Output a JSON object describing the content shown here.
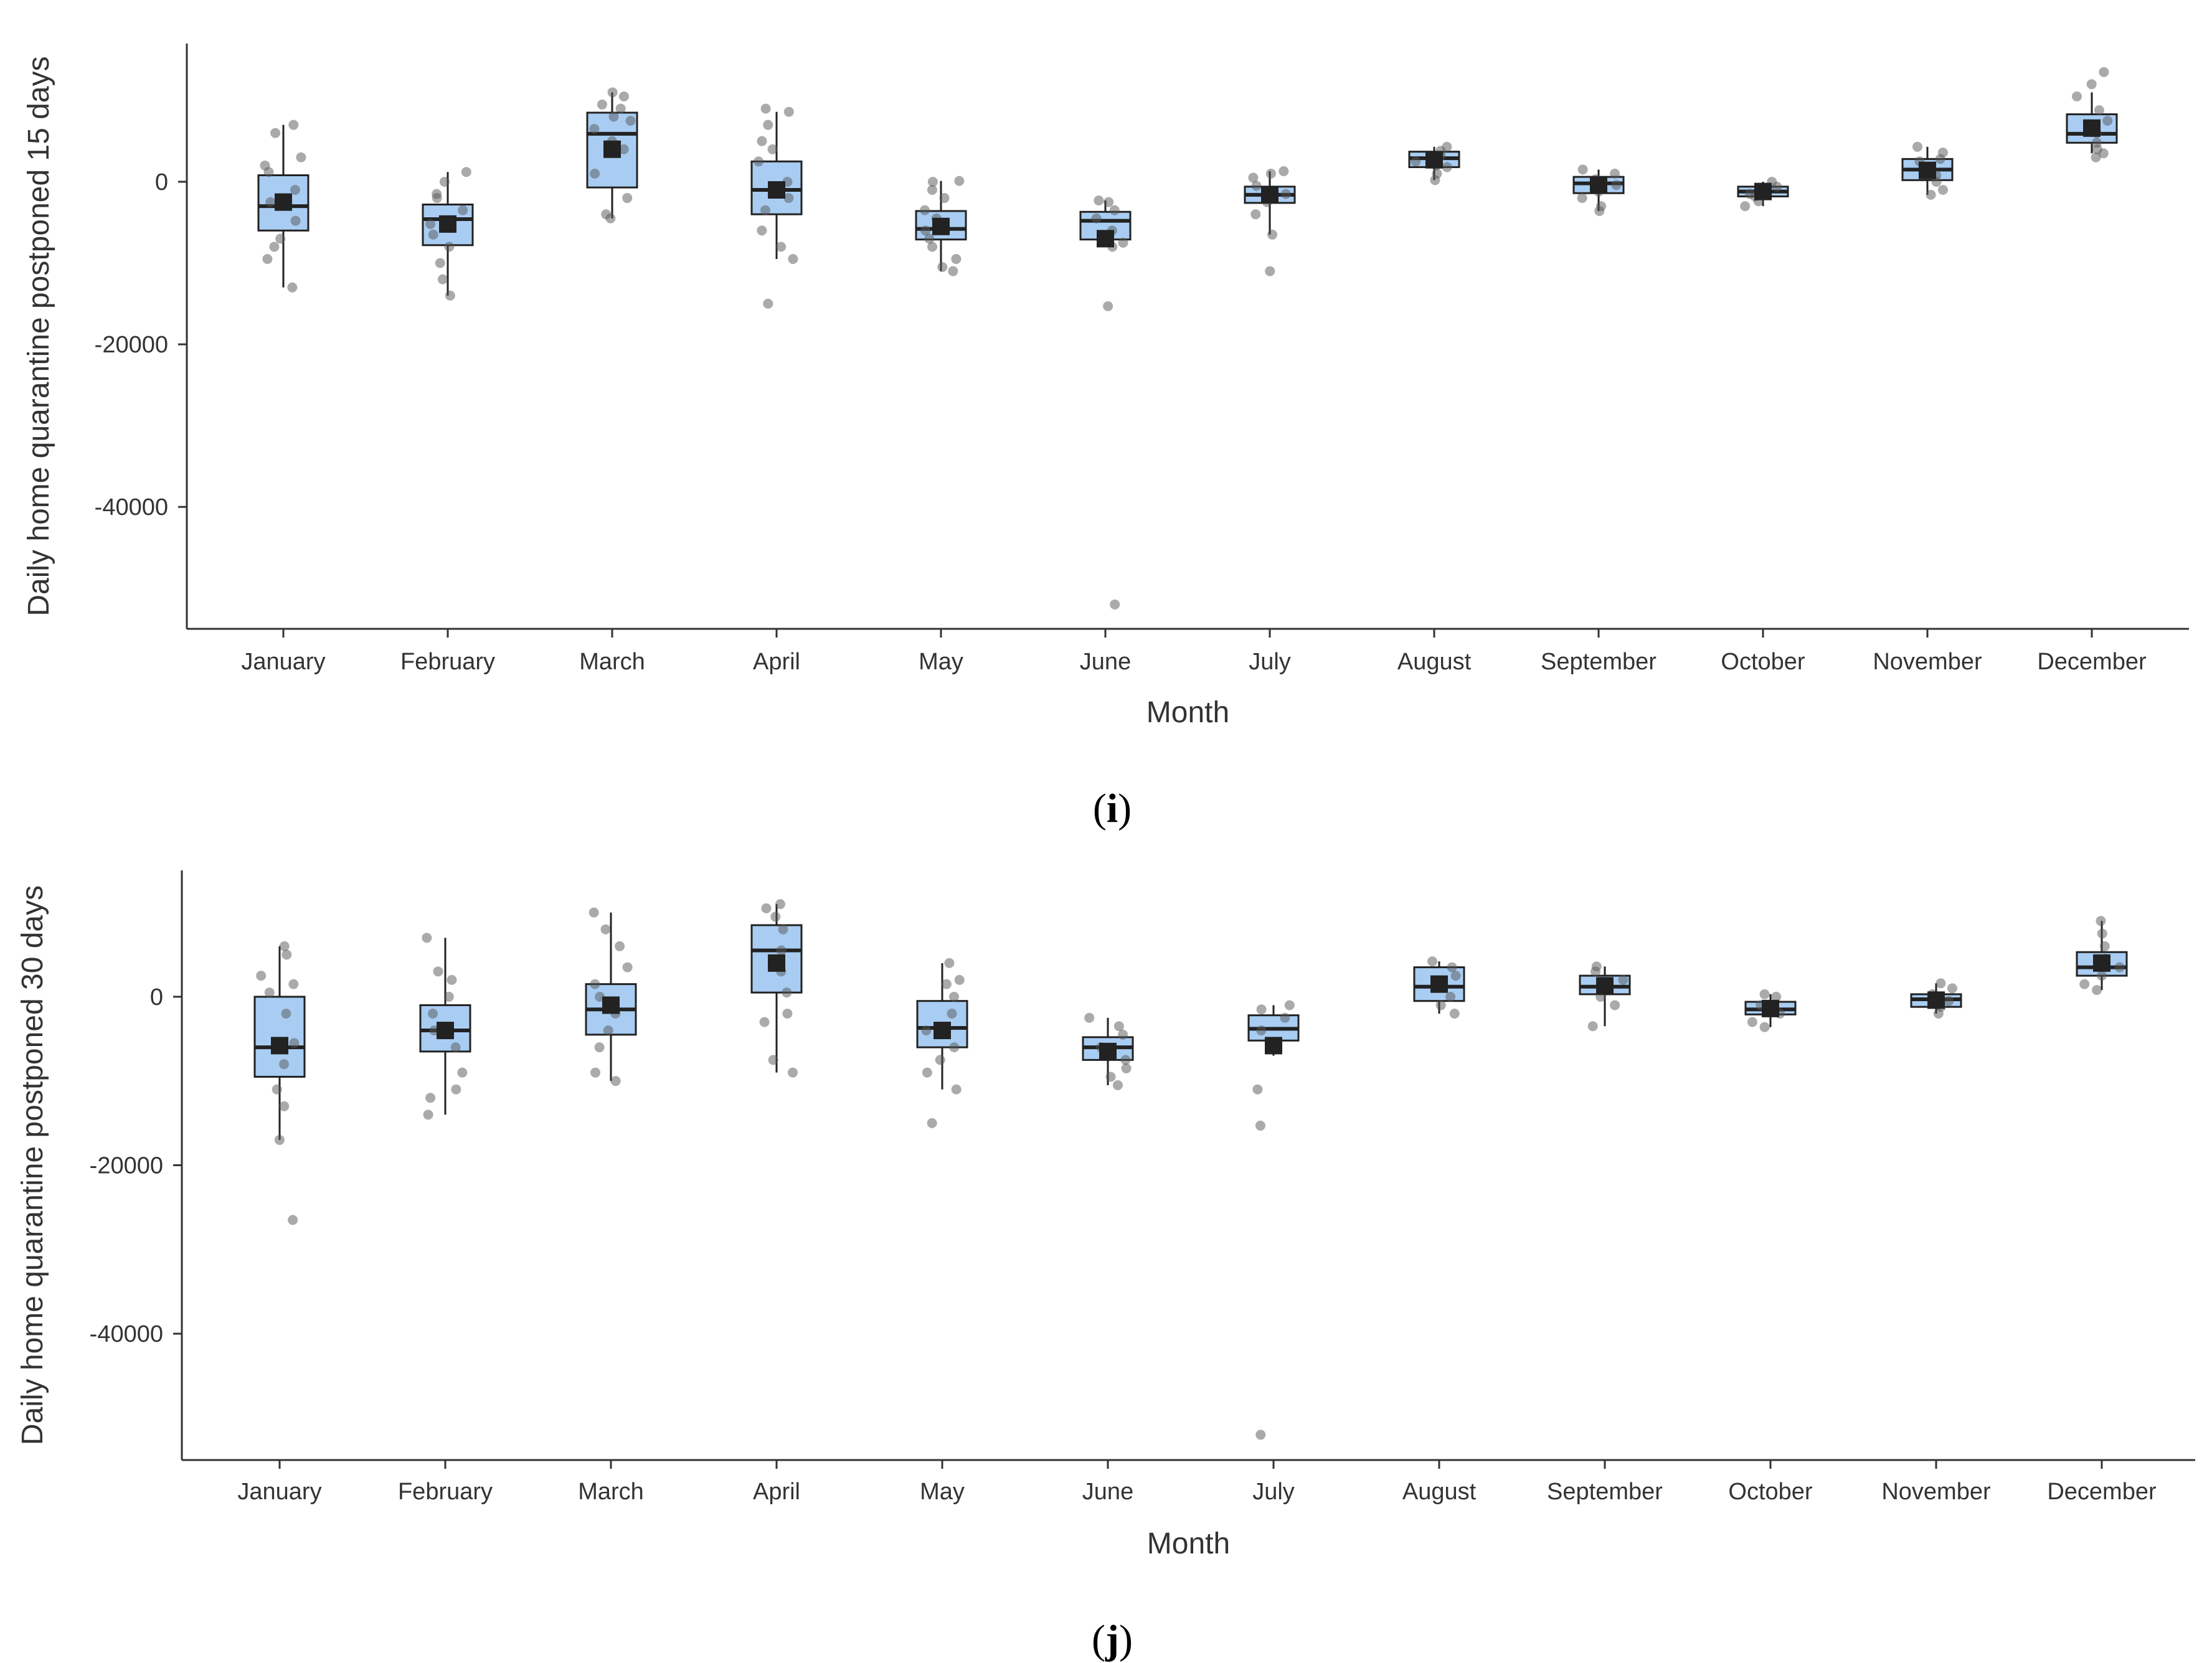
{
  "colors": {
    "box_fill": "#a9cdf2",
    "box_stroke": "#222222",
    "point": "#555555",
    "axis": "#333333"
  },
  "chart_data": [
    {
      "type": "box",
      "panel_label": "i",
      "xlabel": "Month",
      "ylabel": "Daily home quarantine postponed 15 days",
      "ylim": [
        -55000,
        17000
      ],
      "yticks": [
        0,
        -20000,
        -40000
      ],
      "ytick_labels": [
        "0",
        "-20000",
        "-40000"
      ],
      "categories": [
        "January",
        "February",
        "March",
        "April",
        "May",
        "June",
        "July",
        "August",
        "September",
        "October",
        "November",
        "December"
      ],
      "boxes": [
        {
          "min": -13000,
          "q1": -6000,
          "median": -3000,
          "q3": 800,
          "max": 7000,
          "mean": -2500
        },
        {
          "min": -14000,
          "q1": -7800,
          "median": -4600,
          "q3": -2800,
          "max": 1200,
          "mean": -5200
        },
        {
          "min": -4500,
          "q1": -700,
          "median": 5900,
          "q3": 8500,
          "max": 11000,
          "mean": 4000
        },
        {
          "min": -9500,
          "q1": -4000,
          "median": -1000,
          "q3": 2500,
          "max": 8600,
          "mean": -1000
        },
        {
          "min": -11000,
          "q1": -7100,
          "median": -5800,
          "q3": -3600,
          "max": 100,
          "mean": -5500
        },
        {
          "min": -8000,
          "q1": -7100,
          "median": -4800,
          "q3": -3700,
          "max": -2300,
          "mean": -7000
        },
        {
          "min": -6500,
          "q1": -2600,
          "median": -1600,
          "q3": -600,
          "max": 1300,
          "mean": -1600
        },
        {
          "min": 200,
          "q1": 1800,
          "median": 2900,
          "q3": 3700,
          "max": 4300,
          "mean": 2700
        },
        {
          "min": -3600,
          "q1": -1400,
          "median": -200,
          "q3": 600,
          "max": 1500,
          "mean": -400
        },
        {
          "min": -3000,
          "q1": -1800,
          "median": -1200,
          "q3": -600,
          "max": 0,
          "mean": -1200
        },
        {
          "min": -1600,
          "q1": 200,
          "median": 1500,
          "q3": 2800,
          "max": 4300,
          "mean": 1400
        },
        {
          "min": 3500,
          "q1": 4800,
          "median": 5900,
          "q3": 8300,
          "max": 11000,
          "mean": 6600
        }
      ],
      "points": [
        [
          -13000,
          -9500,
          -7000,
          -4800,
          -2500,
          -1000,
          1200,
          3000,
          6000,
          7000,
          2000,
          -8000
        ],
        [
          -14000,
          -12000,
          -10000,
          -8000,
          -6500,
          -5200,
          -3500,
          -1500,
          0,
          1200,
          -2000
        ],
        [
          -4500,
          -4000,
          -2000,
          1000,
          4000,
          6500,
          8000,
          9500,
          11000,
          10500,
          9000,
          7500,
          5000
        ],
        [
          -15000,
          -9500,
          -8000,
          -6000,
          -3500,
          -2000,
          0,
          2500,
          5000,
          7000,
          8600,
          9000,
          4000
        ],
        [
          -11000,
          -10500,
          -9500,
          -8000,
          -7000,
          -6000,
          -4500,
          -3500,
          -2000,
          -1000,
          100,
          0
        ],
        [
          -52000,
          -15300,
          -8000,
          -7500,
          -6000,
          -4500,
          -3500,
          -2500,
          -2300
        ],
        [
          -11000,
          -6500,
          -4000,
          -2500,
          -1500,
          -500,
          500,
          1300,
          1000
        ],
        [
          200,
          1000,
          1800,
          2500,
          3200,
          3800,
          4300,
          2000
        ],
        [
          -3600,
          -3000,
          -2000,
          -1200,
          -400,
          300,
          1000,
          1500
        ],
        [
          -3000,
          -2400,
          -1800,
          -1200,
          -600,
          0,
          -1500
        ],
        [
          -1600,
          -1000,
          0,
          800,
          1800,
          2800,
          3600,
          4300,
          2500
        ],
        [
          3000,
          3500,
          4800,
          6000,
          7500,
          8800,
          10500,
          12000,
          13500,
          4000
        ]
      ]
    },
    {
      "type": "box",
      "panel_label": "j",
      "xlabel": "Month",
      "ylabel": "Daily home quarantine postponed 30 days",
      "ylim": [
        -55000,
        15000
      ],
      "yticks": [
        0,
        -20000,
        -40000
      ],
      "ytick_labels": [
        "0",
        "-20000",
        "-40000"
      ],
      "categories": [
        "January",
        "February",
        "March",
        "April",
        "May",
        "June",
        "July",
        "August",
        "September",
        "October",
        "November",
        "December"
      ],
      "boxes": [
        {
          "min": -17000,
          "q1": -9500,
          "median": -6000,
          "q3": 0,
          "max": 6000,
          "mean": -5800
        },
        {
          "min": -14000,
          "q1": -6500,
          "median": -4000,
          "q3": -1000,
          "max": 7000,
          "mean": -4000
        },
        {
          "min": -10000,
          "q1": -4500,
          "median": -1500,
          "q3": 1500,
          "max": 10000,
          "mean": -1000
        },
        {
          "min": -9000,
          "q1": 500,
          "median": 5500,
          "q3": 8500,
          "max": 11000,
          "mean": 4000
        },
        {
          "min": -11000,
          "q1": -6000,
          "median": -3700,
          "q3": -500,
          "max": 4000,
          "mean": -4000
        },
        {
          "min": -10500,
          "q1": -7500,
          "median": -6000,
          "q3": -4800,
          "max": -2500,
          "mean": -6500
        },
        {
          "min": -7000,
          "q1": -5200,
          "median": -3800,
          "q3": -2200,
          "max": -1000,
          "mean": -5800
        },
        {
          "min": -2000,
          "q1": -500,
          "median": 1200,
          "q3": 3500,
          "max": 4200,
          "mean": 1500
        },
        {
          "min": -3500,
          "q1": 300,
          "median": 1200,
          "q3": 2500,
          "max": 3600,
          "mean": 1300
        },
        {
          "min": -3600,
          "q1": -2100,
          "median": -1500,
          "q3": -600,
          "max": 300,
          "mean": -1400
        },
        {
          "min": -2000,
          "q1": -1200,
          "median": -300,
          "q3": 300,
          "max": 1600,
          "mean": -400
        },
        {
          "min": 800,
          "q1": 2500,
          "median": 3500,
          "q3": 5300,
          "max": 9000,
          "mean": 4000
        }
      ],
      "points": [
        [
          -26500,
          -17000,
          -13000,
          -11000,
          -8000,
          -5500,
          -2000,
          500,
          2500,
          5000,
          6000,
          1500
        ],
        [
          -14000,
          -12000,
          -11000,
          -9000,
          -6000,
          -4000,
          -2000,
          0,
          2000,
          3000,
          7000
        ],
        [
          -10000,
          -9000,
          -6000,
          -4000,
          -2000,
          0,
          1500,
          3500,
          6000,
          8000,
          10000
        ],
        [
          -9000,
          -7500,
          -3000,
          -2000,
          500,
          3000,
          5500,
          8000,
          9500,
          11000,
          10500
        ],
        [
          -15000,
          -11000,
          -9000,
          -7500,
          -6000,
          -4000,
          -2000,
          0,
          1500,
          4000,
          2000
        ],
        [
          -10500,
          -9500,
          -8500,
          -7500,
          -6000,
          -4500,
          -3500,
          -2500
        ],
        [
          -52000,
          -15300,
          -11000,
          -5500,
          -4000,
          -2500,
          -1500,
          -1000
        ],
        [
          -2000,
          -1000,
          0,
          1200,
          2500,
          3500,
          4200
        ],
        [
          -3500,
          -1000,
          0,
          1000,
          2000,
          3000,
          3600
        ],
        [
          -3600,
          -3000,
          -2000,
          -1000,
          0,
          300
        ],
        [
          -2000,
          -1200,
          -500,
          300,
          1000,
          1600
        ],
        [
          800,
          1500,
          2500,
          3500,
          4500,
          6000,
          7500,
          9000
        ]
      ]
    }
  ]
}
